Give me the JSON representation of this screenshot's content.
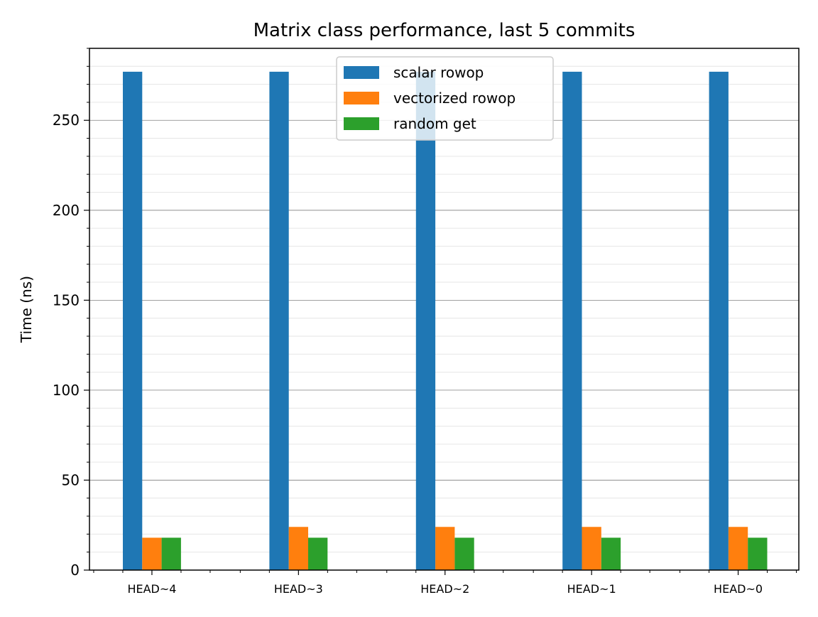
{
  "chart_data": {
    "type": "bar",
    "title": "Matrix class performance, last 5 commits",
    "xlabel": "",
    "ylabel": "Time (ns)",
    "categories": [
      "HEAD~4",
      "HEAD~3",
      "HEAD~2",
      "HEAD~1",
      "HEAD~0"
    ],
    "series": [
      {
        "name": "scalar rowop",
        "color": "#1f77b4",
        "values": [
          277,
          277,
          277,
          277,
          277
        ]
      },
      {
        "name": "vectorized rowop",
        "color": "#ff7f0e",
        "values": [
          18,
          24,
          24,
          24,
          24
        ]
      },
      {
        "name": "random get",
        "color": "#2ca02c",
        "values": [
          18,
          18,
          18,
          18,
          18
        ]
      }
    ],
    "ylim": [
      0,
      290
    ],
    "yticks_major": [
      0,
      50,
      100,
      150,
      200,
      250
    ],
    "yticks_minor_step": 10,
    "grid": {
      "major": true,
      "minor": true,
      "axis": "y"
    },
    "legend_position": "top-center"
  }
}
